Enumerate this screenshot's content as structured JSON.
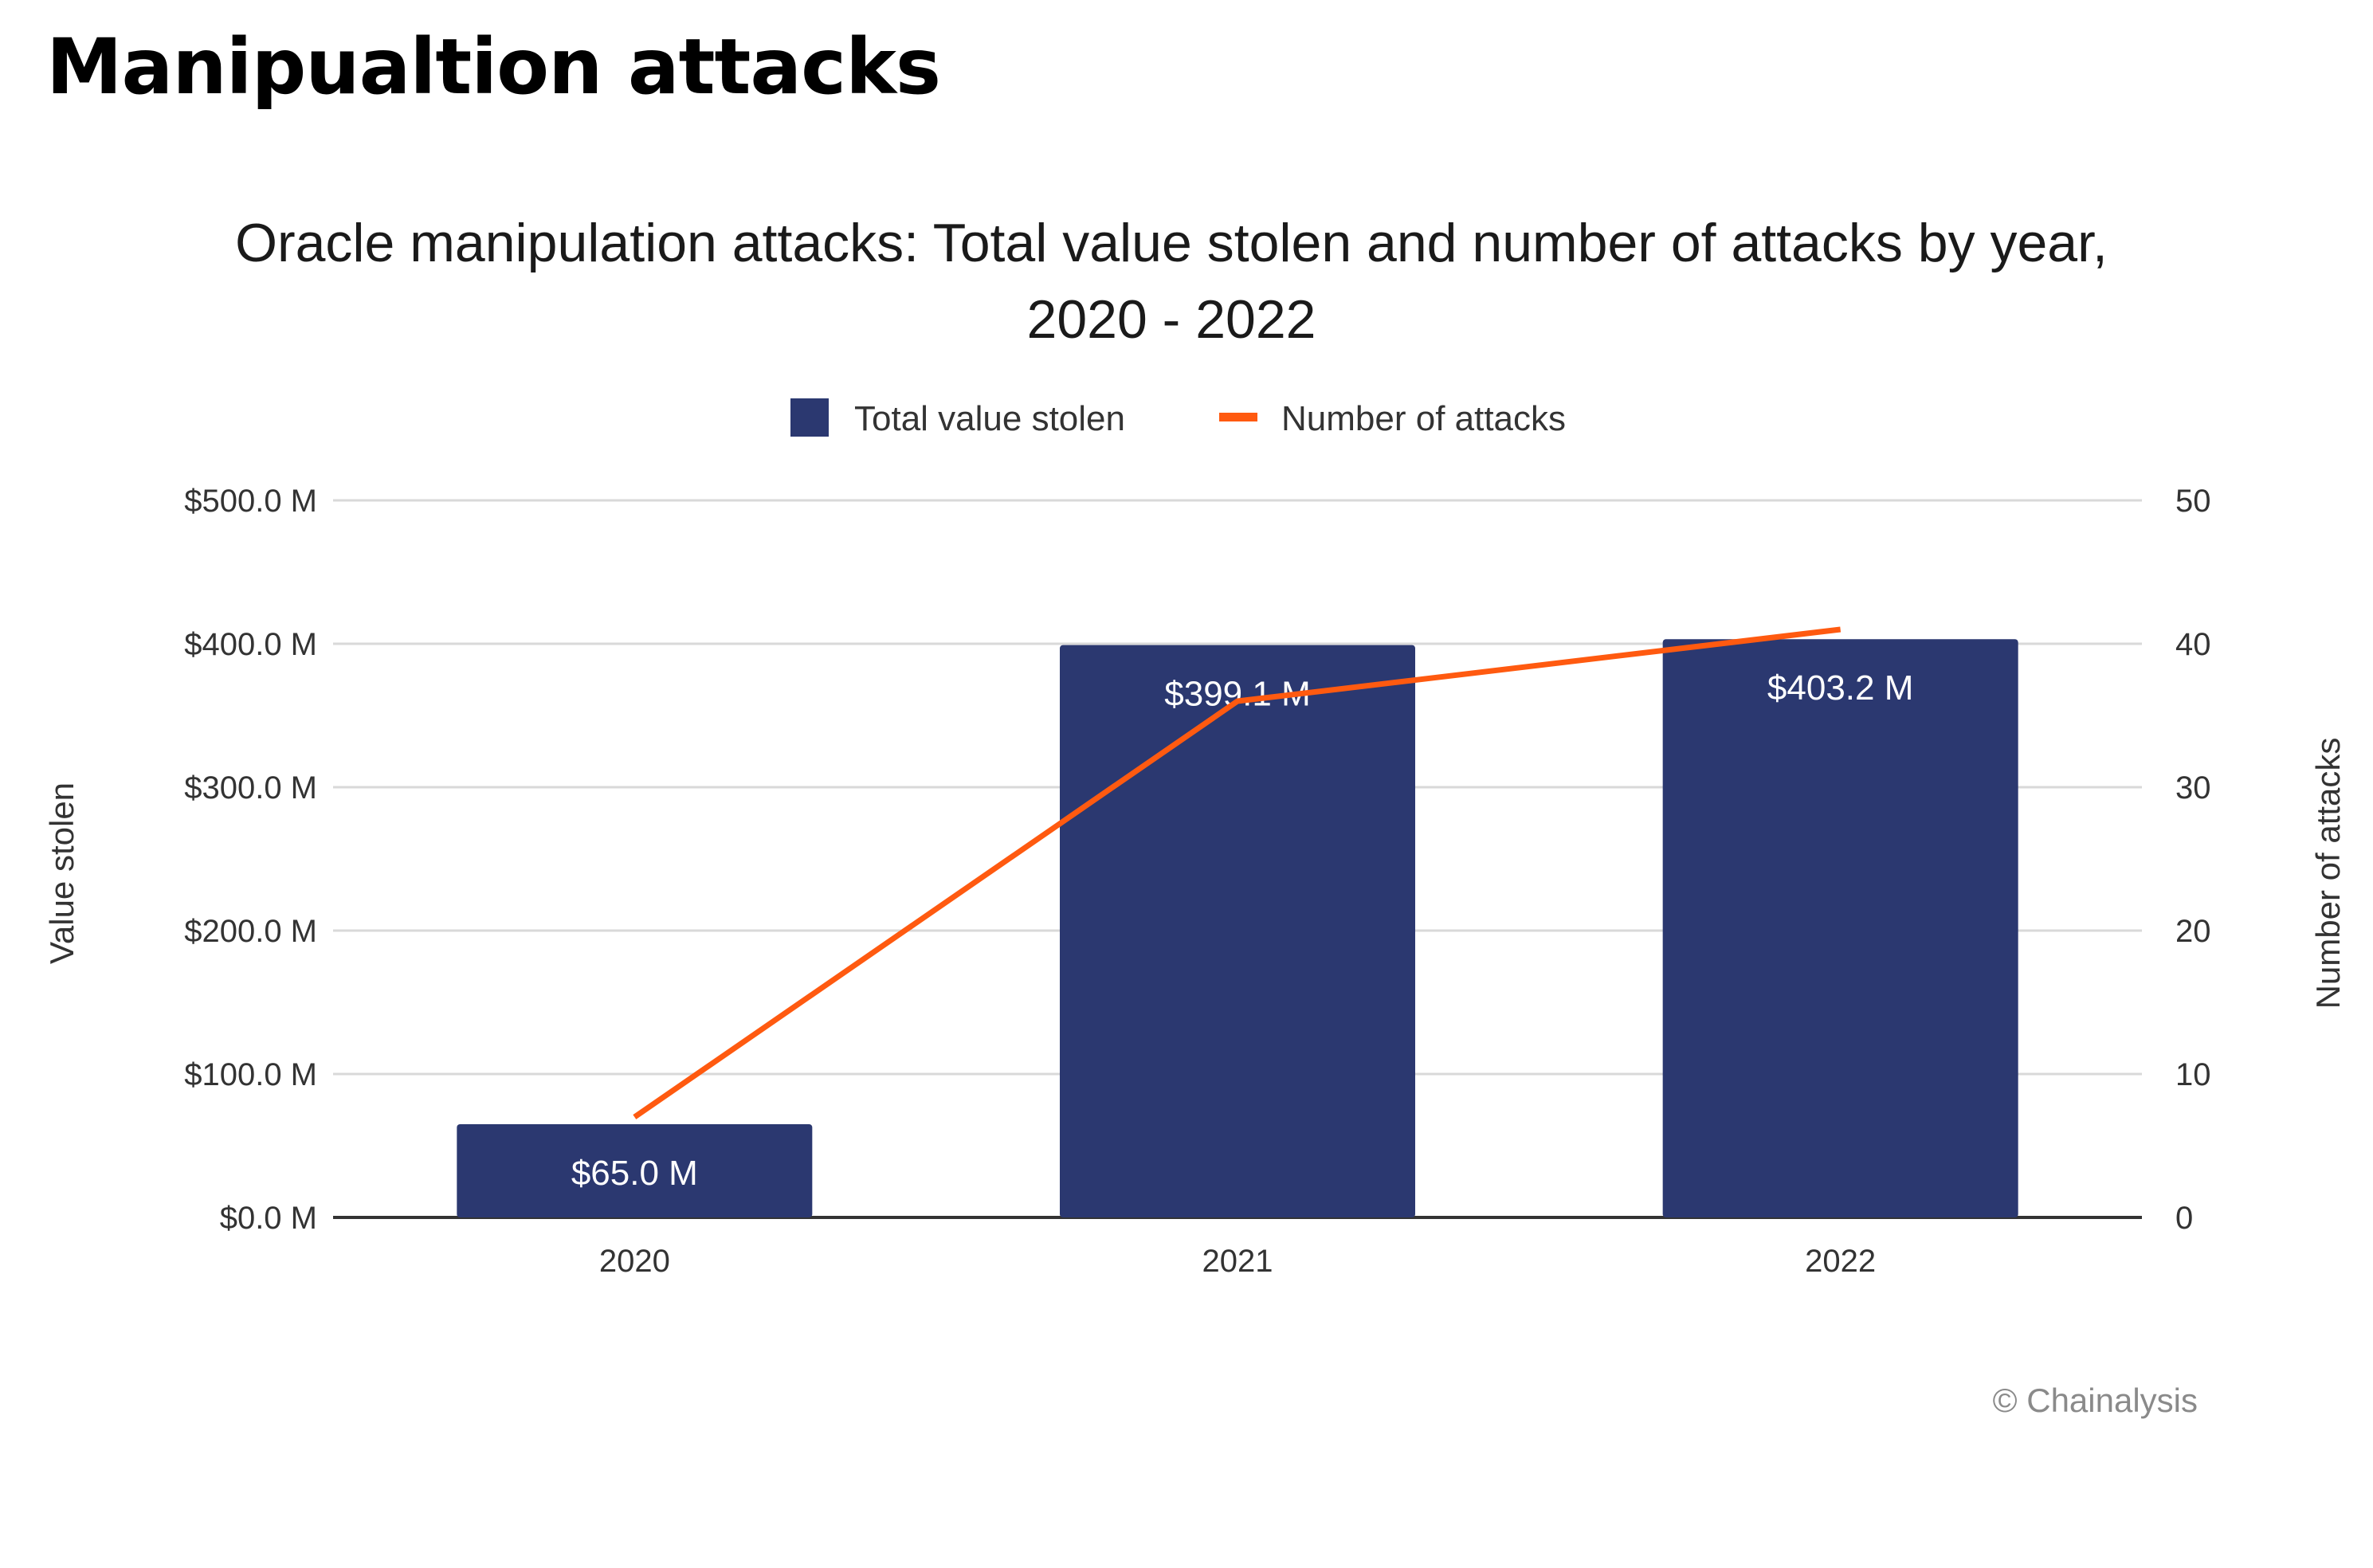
{
  "heading": "Manipualtion attacks",
  "chart_data": {
    "type": "bar",
    "title_lines": [
      "Oracle manipulation attacks: Total value stolen and number of attacks by year,",
      "2020 - 2022"
    ],
    "categories": [
      "2020",
      "2021",
      "2022"
    ],
    "series": [
      {
        "name": "Total value stolen",
        "type": "bar",
        "axis": "left",
        "color": "#2b3870",
        "values": [
          65.0,
          399.1,
          403.2
        ],
        "labels": [
          "$65.0 M",
          "$399.1 M",
          "$403.2 M"
        ]
      },
      {
        "name": "Number of attacks",
        "type": "line",
        "axis": "right",
        "color": "#ff5a10",
        "values": [
          7,
          36,
          41
        ]
      }
    ],
    "ylabel": "Value stolen",
    "y2label": "Number of attacks",
    "ylim": [
      0,
      500
    ],
    "y2lim": [
      0,
      50
    ],
    "yticks": [
      0,
      100,
      200,
      300,
      400,
      500
    ],
    "ytick_labels": [
      "$0.0 M",
      "$100.0 M",
      "$200.0 M",
      "$300.0 M",
      "$400.0 M",
      "$500.0 M"
    ],
    "y2ticks": [
      0,
      10,
      20,
      30,
      40,
      50
    ],
    "y2tick_labels": [
      "0",
      "10",
      "20",
      "30",
      "40",
      "50"
    ],
    "grid": true,
    "legend_position": "top-center",
    "credit": "© Chainalysis"
  }
}
